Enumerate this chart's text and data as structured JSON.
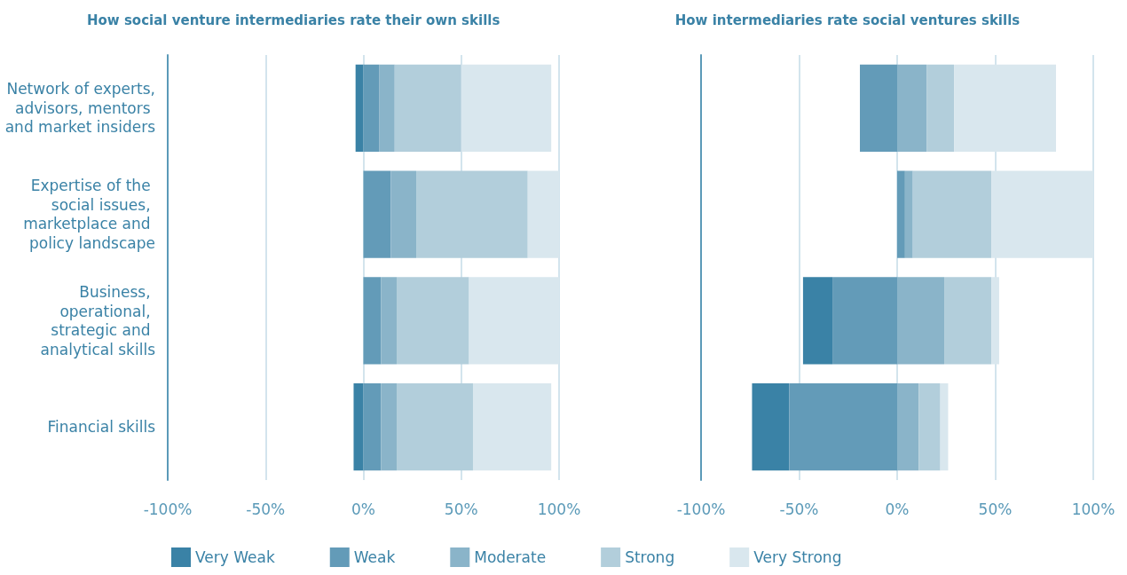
{
  "chart_data": [
    {
      "type": "bar",
      "title": "How social venture intermediaries rate their own skills",
      "orientation": "horizontal",
      "stacked": true,
      "grid": "x",
      "legend": "bottom",
      "categories": [
        "Network of experts, advisors, mentors and market insiders",
        "Expertise of the social issues, marketplace and policy landscape",
        "Business, operational, strategic and analytical skills",
        "Financial skills"
      ],
      "xlim": [
        -100,
        100
      ],
      "xticks": [
        {
          "value": -100,
          "label": "-100%"
        },
        {
          "value": -50,
          "label": "-50%"
        },
        {
          "value": 0,
          "label": "0%"
        },
        {
          "value": 50,
          "label": "50%"
        },
        {
          "value": 100,
          "label": "100%"
        }
      ],
      "series": [
        {
          "name": "Very Weak",
          "color": "#3a82a6",
          "values": [
            -4,
            0,
            0,
            -5
          ]
        },
        {
          "name": "Weak",
          "color": "#639bb8",
          "values": [
            8,
            14,
            9,
            9
          ]
        },
        {
          "name": "Moderate",
          "color": "#8ab4c9",
          "values": [
            8,
            13,
            8,
            8
          ]
        },
        {
          "name": "Strong",
          "color": "#b2cedb",
          "values": [
            34,
            57,
            37,
            39
          ]
        },
        {
          "name": "Very Strong",
          "color": "#d9e7ee",
          "values": [
            46,
            16,
            46,
            40
          ]
        }
      ]
    },
    {
      "type": "bar",
      "title": "How intermediaries rate social ventures skills",
      "orientation": "horizontal",
      "stacked": true,
      "grid": "x",
      "tick_labels": "x",
      "categories": [
        "Network of experts, advisors, mentors and market insiders",
        "Expertise of the social issues, marketplace and policy landscape",
        "Business, operational, strategic and analytical skills",
        "Financial skills"
      ],
      "xlim": [
        -100,
        100
      ],
      "xticks": [
        {
          "value": -100,
          "label": "-100%"
        },
        {
          "value": -50,
          "label": "-50%"
        },
        {
          "value": 0,
          "label": "0%"
        },
        {
          "value": 50,
          "label": "50%"
        },
        {
          "value": 100,
          "label": "100%"
        }
      ],
      "series": [
        {
          "name": "Very Weak",
          "color": "#3a82a6",
          "values": [
            0,
            0,
            -15,
            -19
          ]
        },
        {
          "name": "Weak",
          "color": "#639bb8",
          "values": [
            -19,
            4,
            -33,
            -55
          ]
        },
        {
          "name": "Moderate",
          "color": "#8ab4c9",
          "values": [
            15,
            4,
            24,
            11
          ]
        },
        {
          "name": "Strong",
          "color": "#b2cedb",
          "values": [
            14,
            40,
            24,
            11
          ]
        },
        {
          "name": "Very Strong",
          "color": "#d9e7ee",
          "values": [
            52,
            52,
            4,
            4
          ]
        }
      ]
    }
  ]
}
